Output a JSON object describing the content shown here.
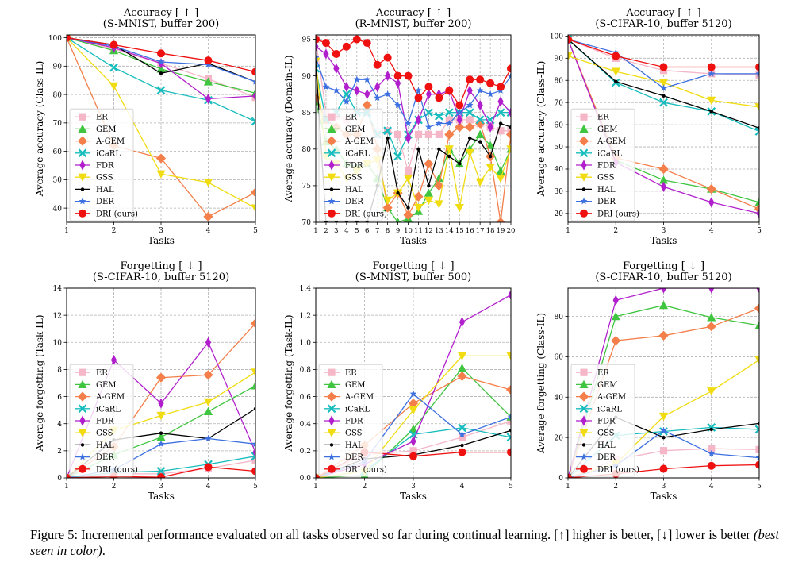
{
  "series_styles": [
    {
      "name": "ER",
      "color": "#f5b6c8",
      "marker": "square"
    },
    {
      "name": "GEM",
      "color": "#3fc53f",
      "marker": "triangle-up"
    },
    {
      "name": "A-GEM",
      "color": "#f47f4a",
      "marker": "diamond"
    },
    {
      "name": "iCaRL",
      "color": "#17bcbd",
      "marker": "x"
    },
    {
      "name": "FDR",
      "color": "#b11fcc",
      "marker": "thin-diamond"
    },
    {
      "name": "GSS",
      "color": "#f0dc10",
      "marker": "triangle-down"
    },
    {
      "name": "HAL",
      "color": "#000000",
      "marker": "point"
    },
    {
      "name": "DER",
      "color": "#3d70e0",
      "marker": "star"
    },
    {
      "name": "DRI (ours)",
      "color": "#ef1010",
      "marker": "circle"
    }
  ],
  "chart_data": [
    {
      "type": "line",
      "title": "Accuracy [ ↑ ]",
      "subtitle": "(S-MNIST, buffer 200)",
      "xlabel": "Tasks",
      "ylabel": "Average accuracy (Class-IL)",
      "x": [
        1,
        2,
        3,
        4,
        5
      ],
      "xticks": [
        1,
        2,
        3,
        4,
        5
      ],
      "ylim": [
        35,
        101
      ],
      "yticks": [
        40,
        50,
        60,
        70,
        80,
        90,
        100
      ],
      "grid": true,
      "legend": "left",
      "series": [
        {
          "name": "ER",
          "values": [
            100,
            96,
            91,
            85.5,
            79
          ]
        },
        {
          "name": "GEM",
          "values": [
            100,
            95.5,
            89,
            84.5,
            80.5
          ]
        },
        {
          "name": "A-GEM",
          "values": [
            100,
            62,
            57.5,
            37,
            45.5
          ]
        },
        {
          "name": "iCaRL",
          "values": [
            100,
            89.5,
            81.5,
            78,
            70.5
          ]
        },
        {
          "name": "FDR",
          "values": [
            100,
            96.5,
            91,
            78.5,
            79.5
          ]
        },
        {
          "name": "GSS",
          "values": [
            100,
            83,
            52,
            49,
            40
          ]
        },
        {
          "name": "HAL",
          "values": [
            100,
            97.5,
            87.5,
            91,
            84.5
          ]
        },
        {
          "name": "DER",
          "values": [
            100,
            97,
            91.5,
            90.5,
            84.5
          ]
        },
        {
          "name": "DRI (ours)",
          "values": [
            100,
            97.5,
            94.5,
            92,
            88
          ]
        }
      ]
    },
    {
      "type": "line",
      "title": "Accuracy [ ↑ ]",
      "subtitle": "(R-MNIST, buffer 200)",
      "xlabel": "Tasks",
      "ylabel": "Average accuracy (Domain-IL)",
      "x": [
        1,
        2,
        3,
        4,
        5,
        6,
        7,
        8,
        9,
        10,
        11,
        12,
        13,
        14,
        15,
        16,
        17,
        18,
        19,
        20
      ],
      "xticks": [
        1,
        2,
        3,
        4,
        5,
        6,
        7,
        8,
        9,
        10,
        11,
        12,
        13,
        14,
        15,
        16,
        17,
        18,
        19,
        20
      ],
      "ylim": [
        70,
        95.6
      ],
      "yticks": [
        70,
        75,
        80,
        85,
        90,
        95
      ],
      "grid": true,
      "legend": "left",
      "series": [
        {
          "name": "ER",
          "values": [
            95,
            85,
            84.5,
            84,
            85,
            85,
            82,
            82.5,
            82,
            77,
            82,
            82,
            82,
            84,
            84,
            84,
            83.5,
            83,
            82.5,
            82.5
          ]
        },
        {
          "name": "GEM",
          "values": [
            86.5,
            81,
            80,
            78,
            77.5,
            78,
            76,
            72,
            70,
            70.5,
            71.5,
            74,
            76,
            80,
            78,
            80,
            82,
            80.5,
            77,
            80
          ]
        },
        {
          "name": "A-GEM",
          "values": [
            87,
            84,
            83,
            82,
            82,
            86,
            80,
            72,
            74,
            71,
            73.5,
            78,
            75,
            82,
            83,
            83,
            83.5,
            79,
            70,
            82
          ]
        },
        {
          "name": "iCaRL",
          "values": [
            91,
            84,
            85,
            87.5,
            85,
            85,
            82,
            82.5,
            79,
            82,
            84,
            85,
            84.5,
            85,
            85,
            85,
            84,
            84,
            85,
            85
          ]
        },
        {
          "name": "FDR",
          "values": [
            94,
            93,
            91,
            88.5,
            88,
            87.5,
            88.5,
            90,
            89,
            81.5,
            84,
            87.5,
            87.5,
            88,
            84,
            88,
            86,
            83,
            86.5,
            85
          ]
        },
        {
          "name": "GSS",
          "values": [
            92,
            79,
            78,
            76,
            77,
            78,
            78.5,
            73,
            74,
            76,
            72,
            73,
            72.5,
            80,
            72,
            79.5,
            75.5,
            77.5,
            76,
            80
          ]
        },
        {
          "name": "HAL",
          "values": [
            92,
            70,
            70,
            70,
            70,
            70,
            75,
            81.5,
            74,
            72,
            80,
            75,
            80,
            79,
            78,
            81.5,
            81,
            79,
            83.5,
            83
          ]
        },
        {
          "name": "DER",
          "values": [
            92.5,
            88.5,
            88,
            86.5,
            89.5,
            89.5,
            87,
            87.5,
            86,
            83.5,
            88,
            83,
            83.5,
            83.5,
            85,
            86,
            88,
            87.5,
            88,
            90
          ]
        },
        {
          "name": "DRI (ours)",
          "values": [
            95,
            94.5,
            93,
            94,
            95,
            94.5,
            91.5,
            92.5,
            90,
            90,
            87,
            88.5,
            87,
            88,
            86,
            89.5,
            89.5,
            89,
            88.5,
            91
          ]
        }
      ]
    },
    {
      "type": "line",
      "title": "Accuracy [ ↑ ]",
      "subtitle": "(S-CIFAR-10, buffer 5120)",
      "xlabel": "Tasks",
      "ylabel": "Average accuracy (Class-IL)",
      "x": [
        1,
        2,
        3,
        4,
        5
      ],
      "xticks": [
        1,
        2,
        3,
        4,
        5
      ],
      "ylim": [
        16,
        100.5
      ],
      "yticks": [
        20,
        30,
        40,
        50,
        60,
        70,
        80,
        90,
        100
      ],
      "grid": true,
      "legend": "left",
      "series": [
        {
          "name": "ER",
          "values": [
            98.5,
            90,
            84.5,
            83,
            82.5
          ]
        },
        {
          "name": "GEM",
          "values": [
            98.5,
            44,
            35,
            31,
            25
          ]
        },
        {
          "name": "A-GEM",
          "values": [
            98.5,
            45,
            40,
            31,
            22
          ]
        },
        {
          "name": "iCaRL",
          "values": [
            98.5,
            79,
            70,
            66,
            57
          ]
        },
        {
          "name": "FDR",
          "values": [
            98.5,
            43,
            32,
            25,
            20
          ]
        },
        {
          "name": "GSS",
          "values": [
            91,
            84,
            79,
            71,
            68
          ]
        },
        {
          "name": "HAL",
          "values": [
            98.5,
            79.5,
            73,
            66,
            58.5
          ]
        },
        {
          "name": "DER",
          "values": [
            98.5,
            92.5,
            76.5,
            83,
            83
          ]
        },
        {
          "name": "DRI (ours)",
          "values": [
            98.5,
            91,
            86,
            86,
            86
          ]
        }
      ]
    },
    {
      "type": "line",
      "title": "Forgetting [ ↓ ]",
      "subtitle": "(S-CIFAR-10, buffer 5120)",
      "xlabel": "Tasks",
      "ylabel": "Average forgetting (Task-IL)",
      "x": [
        1,
        2,
        3,
        4,
        5
      ],
      "xticks": [
        1,
        2,
        3,
        4,
        5
      ],
      "ylim": [
        0,
        14
      ],
      "yticks": [
        0,
        2,
        4,
        6,
        8,
        10,
        12,
        14
      ],
      "grid": true,
      "legend": "left",
      "series": [
        {
          "name": "ER",
          "values": [
            0,
            0.3,
            0.3,
            0.7,
            1.3
          ]
        },
        {
          "name": "GEM",
          "values": [
            0,
            1.7,
            3,
            4.9,
            6.8
          ]
        },
        {
          "name": "A-GEM",
          "values": [
            0,
            2.3,
            7.4,
            7.6,
            11.4
          ]
        },
        {
          "name": "iCaRL",
          "values": [
            0,
            0.4,
            0.5,
            1,
            1.6
          ]
        },
        {
          "name": "FDR",
          "values": [
            0,
            8.7,
            5.5,
            10,
            1.9
          ]
        },
        {
          "name": "GSS",
          "values": [
            0,
            3.5,
            4.6,
            5.6,
            7.8
          ]
        },
        {
          "name": "HAL",
          "values": [
            0,
            2.8,
            3.3,
            2.9,
            5.1
          ]
        },
        {
          "name": "DER",
          "values": [
            0,
            0.6,
            2.5,
            2.9,
            2.5
          ]
        },
        {
          "name": "DRI (ours)",
          "values": [
            0,
            0.1,
            0.05,
            0.8,
            0.5
          ]
        }
      ]
    },
    {
      "type": "line",
      "title": "Forgetting [ ↓ ]",
      "subtitle": "(S-MNIST, buffer 500)",
      "xlabel": "Tasks",
      "ylabel": "Average forgetting (Task-IL)",
      "x": [
        1,
        2,
        3,
        4,
        5
      ],
      "xticks": [
        1,
        2,
        3,
        4,
        5
      ],
      "ylim": [
        0,
        1.4
      ],
      "yticks": [
        0.0,
        0.2,
        0.4,
        0.6,
        0.8,
        1.0,
        1.2,
        1.4
      ],
      "grid": true,
      "legend": "left",
      "series": [
        {
          "name": "ER",
          "values": [
            0,
            0.17,
            0.2,
            0.3,
            0.42
          ]
        },
        {
          "name": "GEM",
          "values": [
            0,
            0.02,
            0.36,
            0.81,
            0.45
          ]
        },
        {
          "name": "A-GEM",
          "values": [
            0,
            0.24,
            0.55,
            0.75,
            0.65
          ]
        },
        {
          "name": "iCaRL",
          "values": [
            0,
            0.05,
            0.32,
            0.37,
            0.3
          ]
        },
        {
          "name": "FDR",
          "values": [
            0,
            0.1,
            0.27,
            1.15,
            1.35
          ]
        },
        {
          "name": "GSS",
          "values": [
            0,
            0.05,
            0.5,
            0.9,
            0.9
          ]
        },
        {
          "name": "HAL",
          "values": [
            0,
            0.14,
            0.17,
            0.24,
            0.35
          ]
        },
        {
          "name": "DER",
          "values": [
            0,
            0.12,
            0.62,
            0.32,
            0.45
          ]
        },
        {
          "name": "DRI (ours)",
          "values": [
            0,
            0.19,
            0.16,
            0.19,
            0.19
          ]
        }
      ]
    },
    {
      "type": "line",
      "title": "Forgetting [ ↓ ]",
      "subtitle": "(S-CIFAR-10, buffer 5120)",
      "xlabel": "Tasks",
      "ylabel": "Average forgetting (Class-IL)",
      "x": [
        1,
        2,
        3,
        4,
        5
      ],
      "xticks": [
        1,
        2,
        3,
        4,
        5
      ],
      "ylim": [
        0,
        94
      ],
      "yticks": [
        0,
        20,
        40,
        60,
        80
      ],
      "grid": true,
      "legend": "left",
      "series": [
        {
          "name": "ER",
          "values": [
            0,
            9,
            13.5,
            14.5,
            14
          ]
        },
        {
          "name": "GEM",
          "values": [
            0,
            80,
            85.5,
            79.5,
            75.5
          ]
        },
        {
          "name": "A-GEM",
          "values": [
            0,
            68,
            70.5,
            75,
            84
          ]
        },
        {
          "name": "iCaRL",
          "values": [
            0,
            21,
            23,
            25,
            24
          ]
        },
        {
          "name": "FDR",
          "values": [
            0,
            88,
            94,
            94,
            94
          ]
        },
        {
          "name": "GSS",
          "values": [
            0,
            7,
            30.5,
            43,
            58.5
          ]
        },
        {
          "name": "HAL",
          "values": [
            0,
            30,
            20,
            24,
            27
          ]
        },
        {
          "name": "DER",
          "values": [
            0,
            6,
            23.5,
            12,
            10
          ]
        },
        {
          "name": "DRI (ours)",
          "values": [
            0,
            2,
            4.5,
            6,
            6.5
          ]
        }
      ]
    }
  ],
  "caption": {
    "main": "Figure 5: Incremental performance evaluated on all tasks observed so far during continual learning. [↑] higher is better, [↓] lower is better",
    "emphasis": "(best seen in color)",
    "end": "."
  }
}
